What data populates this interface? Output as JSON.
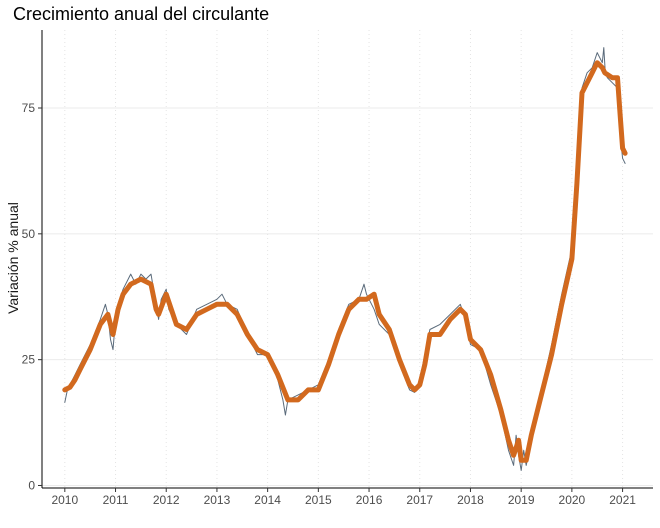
{
  "chart_data": {
    "type": "line",
    "title": "Crecimiento anual del circulante",
    "xlabel": "",
    "ylabel": "Variación % anual",
    "xlim": [
      2009.55,
      2021.6
    ],
    "ylim": [
      -0.5,
      90.5
    ],
    "x_ticks": [
      "2010",
      "2011",
      "2012",
      "2013",
      "2014",
      "2015",
      "2016",
      "2017",
      "2018",
      "2019",
      "2020",
      "2021"
    ],
    "y_ticks": [
      0,
      25,
      50,
      75
    ],
    "grid": true,
    "series": [
      {
        "color": "#D2691E",
        "style": "thick-smoothed",
        "x": [
          2010.0,
          2010.1,
          2010.2,
          2010.3,
          2010.5,
          2010.7,
          2010.85,
          2010.95,
          2011.05,
          2011.15,
          2011.3,
          2011.5,
          2011.7,
          2011.8,
          2011.85,
          2012.0,
          2012.2,
          2012.4,
          2012.6,
          2012.8,
          2013.0,
          2013.2,
          2013.4,
          2013.6,
          2013.8,
          2014.0,
          2014.2,
          2014.4,
          2014.6,
          2014.8,
          2015.0,
          2015.2,
          2015.4,
          2015.6,
          2015.8,
          2015.95,
          2016.1,
          2016.2,
          2016.4,
          2016.6,
          2016.8,
          2016.9,
          2017.0,
          2017.1,
          2017.2,
          2017.4,
          2017.6,
          2017.8,
          2017.9,
          2018.0,
          2018.2,
          2018.4,
          2018.6,
          2018.75,
          2018.85,
          2018.95,
          2019.0,
          2019.1,
          2019.2,
          2019.4,
          2019.6,
          2019.8,
          2020.0,
          2020.1,
          2020.2,
          2020.3,
          2020.4,
          2020.5,
          2020.6,
          2020.65,
          2020.8,
          2020.9,
          2020.95,
          2021.0,
          2021.05
        ],
        "y": [
          19,
          19.5,
          21,
          23,
          27,
          32,
          34,
          30,
          35,
          38,
          40,
          41,
          40,
          35,
          34,
          38,
          32,
          31,
          34,
          35,
          36,
          36,
          34,
          30,
          27,
          26,
          22,
          17,
          17,
          19,
          19,
          24,
          30,
          35,
          37,
          37,
          38,
          34,
          31,
          25,
          20,
          19,
          20,
          24,
          30,
          30,
          33,
          35,
          34,
          29,
          27,
          22,
          15,
          9,
          6,
          9,
          5,
          5,
          10,
          18,
          26,
          36,
          45,
          60,
          78,
          80,
          82,
          84,
          83,
          82,
          81,
          81,
          74,
          67,
          66
        ]
      },
      {
        "color": "#5b6b7b",
        "style": "thin-daily",
        "x": [
          2010.0,
          2010.05,
          2010.1,
          2010.2,
          2010.3,
          2010.5,
          2010.7,
          2010.8,
          2010.85,
          2010.9,
          2010.95,
          2011.0,
          2011.05,
          2011.15,
          2011.3,
          2011.4,
          2011.5,
          2011.6,
          2011.7,
          2011.8,
          2011.85,
          2011.9,
          2012.0,
          2012.05,
          2012.2,
          2012.4,
          2012.6,
          2012.8,
          2013.0,
          2013.1,
          2013.2,
          2013.4,
          2013.6,
          2013.8,
          2014.0,
          2014.2,
          2014.3,
          2014.35,
          2014.4,
          2014.6,
          2014.8,
          2015.0,
          2015.2,
          2015.4,
          2015.6,
          2015.8,
          2015.9,
          2015.95,
          2016.1,
          2016.2,
          2016.4,
          2016.6,
          2016.8,
          2016.9,
          2017.0,
          2017.1,
          2017.2,
          2017.4,
          2017.6,
          2017.8,
          2017.9,
          2018.0,
          2018.2,
          2018.4,
          2018.6,
          2018.75,
          2018.85,
          2018.9,
          2018.95,
          2019.0,
          2019.05,
          2019.1,
          2019.2,
          2019.4,
          2019.6,
          2019.8,
          2020.0,
          2020.1,
          2020.2,
          2020.3,
          2020.4,
          2020.5,
          2020.6,
          2020.63,
          2020.66,
          2020.7,
          2020.8,
          2020.9,
          2020.95,
          2021.0,
          2021.05
        ],
        "y": [
          16.5,
          19,
          20,
          22,
          24,
          28,
          33,
          36,
          34,
          29,
          27,
          33,
          36,
          39,
          42,
          40,
          42,
          41,
          42,
          36,
          33,
          37,
          39,
          35,
          32,
          30,
          35,
          36,
          37,
          38,
          36,
          35,
          30,
          26,
          26,
          21,
          17,
          14,
          17,
          18,
          19,
          20,
          25,
          31,
          36,
          37,
          40,
          38,
          35,
          32,
          30,
          24,
          19,
          18.5,
          21,
          26,
          31,
          32,
          34,
          36,
          33,
          28,
          27,
          20,
          14,
          7,
          4,
          10,
          6,
          3,
          7,
          4,
          9,
          19,
          28,
          38,
          47,
          63,
          79,
          82,
          83,
          86,
          84,
          87,
          82,
          81,
          80,
          79,
          70,
          65,
          64
        ]
      }
    ]
  }
}
